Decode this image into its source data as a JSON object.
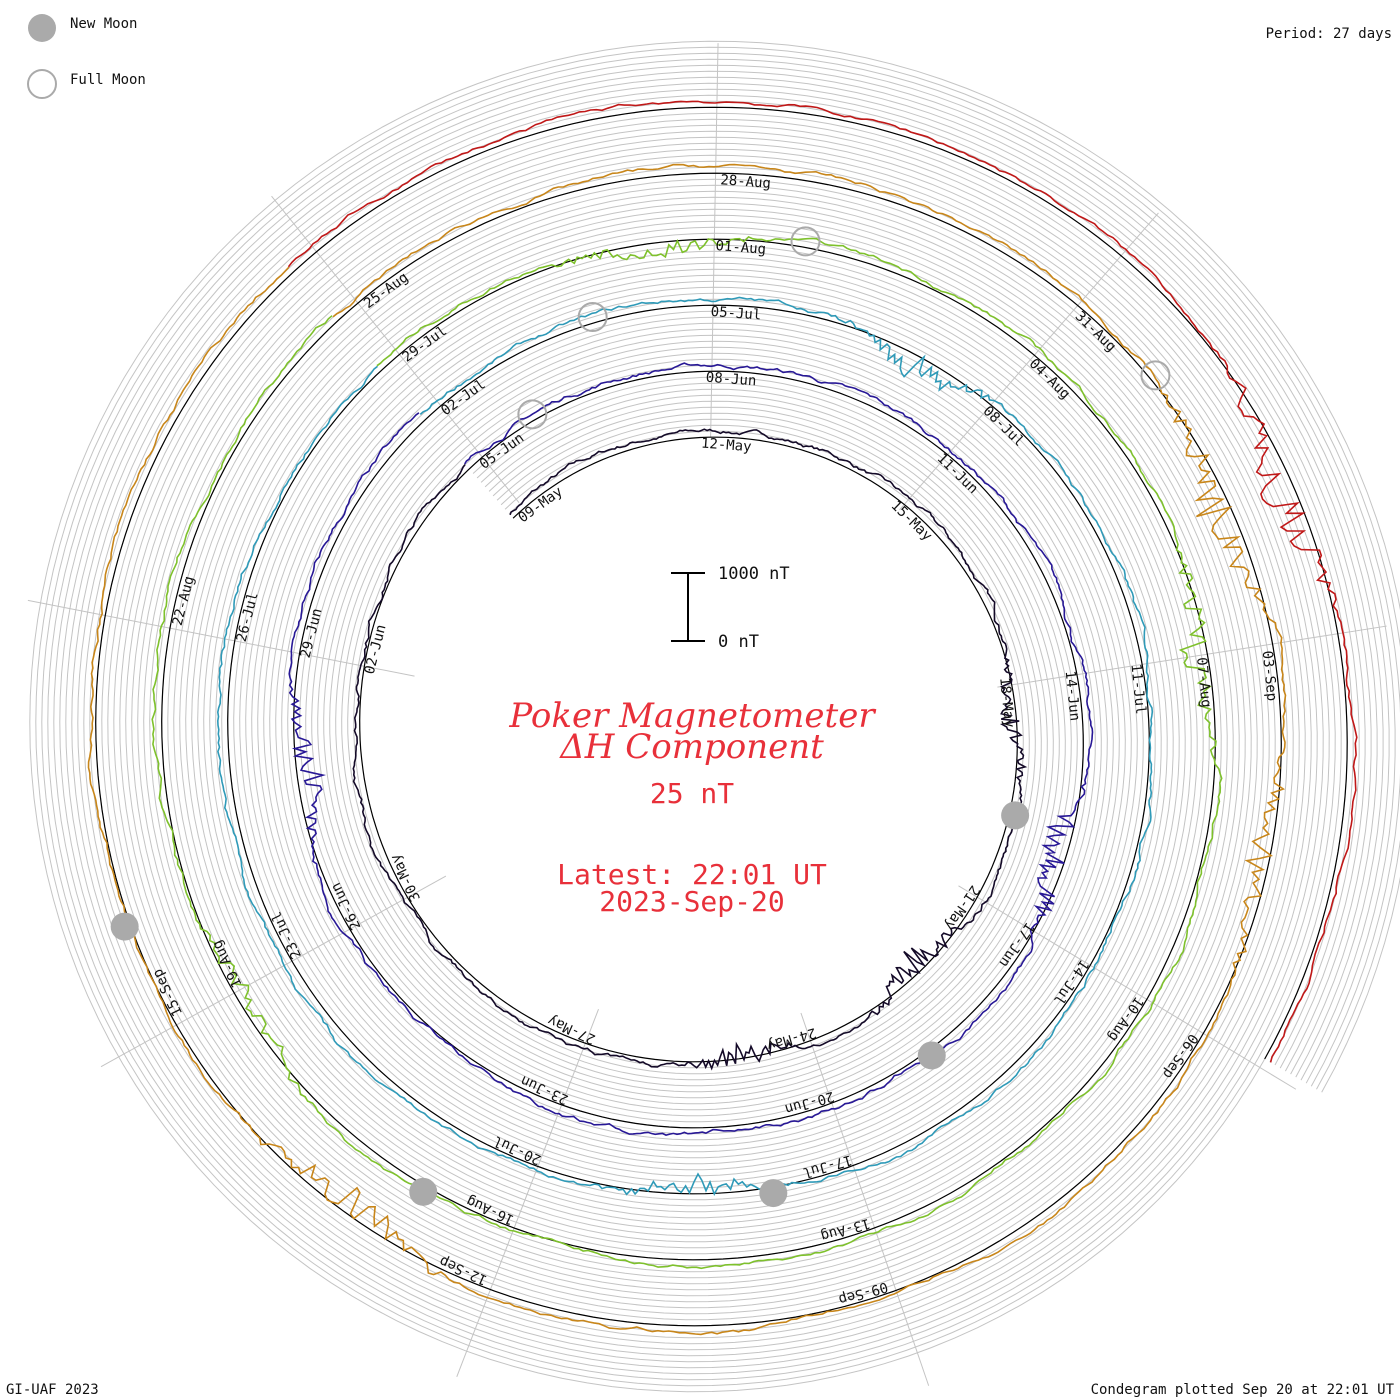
{
  "legend": {
    "new_moon": "New Moon",
    "full_moon": "Full Moon"
  },
  "period_label": "Period: 27 days",
  "footer": {
    "left": "GI-UAF 2023",
    "right": "Condegram plotted Sep 20 at 22:01 UT"
  },
  "center": {
    "title_line1": "Poker Magnetometer",
    "title_line2": "ΔH Component",
    "scale": "25 nT",
    "latest": "Latest: 22:01 UT",
    "date": "2023-Sep-20"
  },
  "colors": {
    "title": "#e8303a",
    "grid": "#b8b8b8",
    "spiral": "#000000",
    "moon_fill": "#aaaaaa"
  },
  "chart_data": {
    "type": "line",
    "title": "Poker Magnetometer ΔH Component",
    "scale_label": "25 nT",
    "scale_bar": {
      "top_label": "1000 nT",
      "bottom_label": "0 nT"
    },
    "period_days": 27,
    "time_range": [
      "2023-05-08",
      "2023-09-20"
    ],
    "grid": true,
    "turns": [
      {
        "color": "#140a28",
        "labels": [
          "09-May",
          "12-May",
          "15-May",
          "18-May",
          "21-May",
          "24-May",
          "27-May",
          "30-May",
          "02-Jun"
        ],
        "activity": [
          {
            "frac": 0.36,
            "mag": 3
          },
          {
            "frac": 0.5,
            "mag": 4
          },
          {
            "frac": 0.6,
            "mag": 3
          }
        ]
      },
      {
        "color": "#281896",
        "labels": [
          "05-Jun",
          "08-Jun",
          "11-Jun",
          "14-Jun",
          "17-Jun",
          "20-Jun",
          "23-Jun",
          "26-Jun",
          "29-Jun"
        ],
        "activity": [
          {
            "frac": 0.42,
            "mag": 5
          },
          {
            "frac": 0.85,
            "mag": 4
          }
        ]
      },
      {
        "color": "#2f9ab8",
        "labels": [
          "02-Jul",
          "05-Jul",
          "08-Jul",
          "11-Jul",
          "14-Jul",
          "17-Jul",
          "20-Jul",
          "23-Jul",
          "26-Jul"
        ],
        "activity": [
          {
            "frac": 0.2,
            "mag": 4
          },
          {
            "frac": 0.62,
            "mag": 3
          }
        ]
      },
      {
        "color": "#7ec12c",
        "labels": [
          "29-Jul",
          "01-Aug",
          "04-Aug",
          "07-Aug",
          "10-Aug",
          "13-Aug",
          "16-Aug",
          "19-Aug",
          "22-Aug"
        ],
        "activity": [
          {
            "frac": 0.1,
            "mag": 3
          },
          {
            "frac": 0.34,
            "mag": 4
          },
          {
            "frac": 0.78,
            "mag": 3
          }
        ]
      },
      {
        "color": "#c8861a",
        "labels": [
          "25-Aug",
          "28-Aug",
          "31-Aug",
          "03-Sep",
          "06-Sep",
          "09-Sep",
          "12-Sep",
          "15-Sep"
        ],
        "activity": [
          {
            "frac": 0.3,
            "mag": 5
          },
          {
            "frac": 0.4,
            "mag": 4
          },
          {
            "frac": 0.72,
            "mag": 4
          }
        ]
      },
      {
        "color": "#c01818",
        "labels": [],
        "activity": [
          {
            "frac": 0.3,
            "mag": 6
          },
          {
            "frac": 0.7,
            "mag": 5
          }
        ]
      }
    ],
    "moons": [
      {
        "type": "full",
        "date": "05-Jun"
      },
      {
        "type": "new",
        "date": "18-Jun"
      },
      {
        "type": "full",
        "date": "03-Jul"
      },
      {
        "type": "new",
        "date": "17-Jul"
      },
      {
        "type": "full",
        "date": "01-Aug"
      },
      {
        "type": "new",
        "date": "16-Aug"
      },
      {
        "type": "full",
        "date": "31-Aug"
      },
      {
        "type": "new",
        "date": "15-Sep"
      },
      {
        "type": "new",
        "date": "19-May"
      }
    ]
  }
}
